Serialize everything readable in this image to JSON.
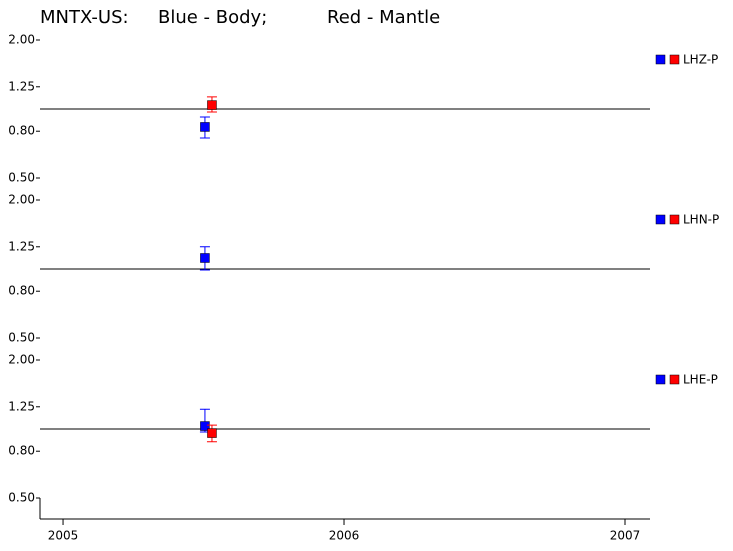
{
  "chart_data": {
    "type": "scatter",
    "title": [
      "MNTX-US:",
      "Blue - Body;",
      "Red - Mantle"
    ],
    "title_colors": [
      "#000000",
      "#0000ff",
      "#ff0000"
    ],
    "log_y": true,
    "reference": 1,
    "xlim": [
      2004.918,
      2007.089
    ],
    "xticks": [
      2005,
      2006,
      2007
    ],
    "ylim": [
      0.5,
      2.0
    ],
    "yticks": [
      {
        "value": 2.0,
        "label": "2.00"
      },
      {
        "value": 1.25,
        "label": "1.25"
      },
      {
        "value": 0.8,
        "label": "0.80"
      },
      {
        "value": 0.5,
        "label": "0.50"
      }
    ],
    "panels": [
      {
        "label": "LHZ-P",
        "series": [
          {
            "color": "#0000ff",
            "x": [
              2005.505
            ],
            "values": [
              0.835
            ],
            "lower": [
              0.747
            ],
            "upper": [
              0.923
            ]
          },
          {
            "color": "#ff0000",
            "x": [
              2005.53
            ],
            "values": [
              1.04
            ],
            "lower": [
              0.97
            ],
            "upper": [
              1.13
            ]
          }
        ]
      },
      {
        "label": "LHN-P",
        "series": [
          {
            "color": "#0000ff",
            "x": [
              2005.505
            ],
            "values": [
              1.117
            ],
            "lower": [
              0.99
            ],
            "upper": [
              1.25
            ]
          },
          {
            "color": "#ff0000",
            "x": [],
            "values": [],
            "lower": [],
            "upper": []
          }
        ]
      },
      {
        "label": "LHE-P",
        "series": [
          {
            "color": "#0000ff",
            "x": [
              2005.505
            ],
            "values": [
              1.03
            ],
            "lower": [
              0.97
            ],
            "upper": [
              1.22
            ]
          },
          {
            "color": "#ff0000",
            "x": [
              2005.53
            ],
            "values": [
              0.96
            ],
            "lower": [
              0.88
            ],
            "upper": [
              1.04
            ]
          }
        ]
      }
    ]
  }
}
